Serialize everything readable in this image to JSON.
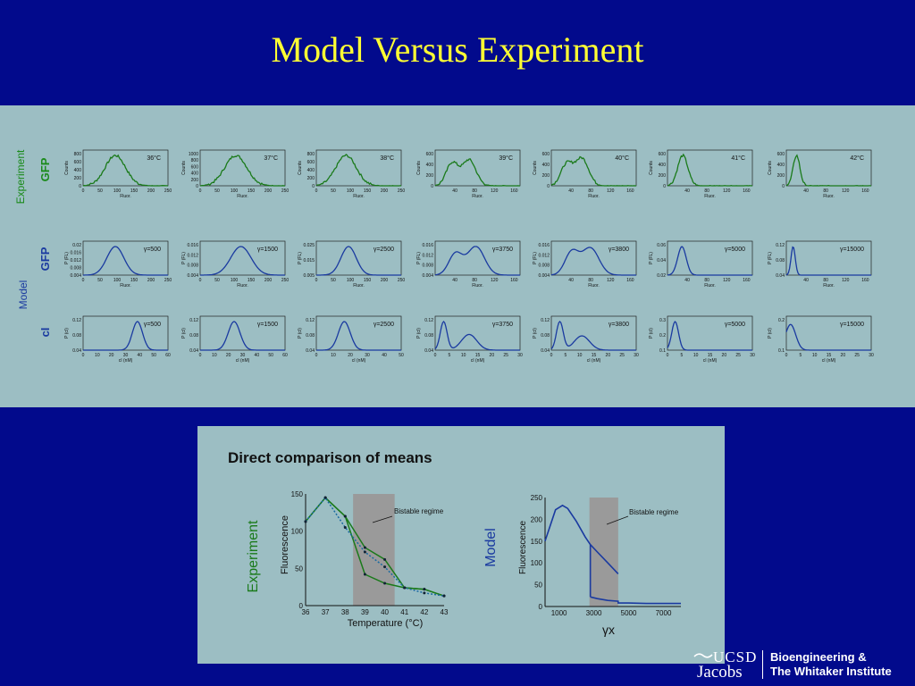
{
  "title": "Model Versus Experiment",
  "row_labels": {
    "experiment": "Experiment",
    "model": "Model",
    "gfp_exp": "GFP",
    "gfp_model": "GFP",
    "ci": "cI"
  },
  "experiment_plots": [
    {
      "label": "36°C",
      "ylabel": "Counts",
      "xlabel": "Fluor.",
      "yticks": [
        "800",
        "600",
        "400",
        "200",
        "0"
      ],
      "xticks": [
        "0",
        "50",
        "100",
        "150",
        "200",
        "250"
      ]
    },
    {
      "label": "37°C",
      "ylabel": "Counts",
      "xlabel": "Fluor.",
      "yticks": [
        "1000",
        "800",
        "600",
        "400",
        "200",
        "0"
      ],
      "xticks": [
        "0",
        "50",
        "100",
        "150",
        "200",
        "250"
      ]
    },
    {
      "label": "38°C",
      "ylabel": "Counts",
      "xlabel": "Fluor.",
      "yticks": [
        "800",
        "600",
        "400",
        "200",
        "0"
      ],
      "xticks": [
        "0",
        "50",
        "100",
        "150",
        "200",
        "250"
      ]
    },
    {
      "label": "39°C",
      "ylabel": "Counts",
      "xlabel": "Fluor.",
      "yticks": [
        "600",
        "400",
        "200",
        "0"
      ],
      "xticks": [
        "40",
        "80",
        "120",
        "160"
      ]
    },
    {
      "label": "40°C",
      "ylabel": "Counts",
      "xlabel": "Fluor.",
      "yticks": [
        "600",
        "400",
        "200",
        "0"
      ],
      "xticks": [
        "40",
        "80",
        "120",
        "160"
      ]
    },
    {
      "label": "41°C",
      "ylabel": "Counts",
      "xlabel": "Fluor.",
      "yticks": [
        "600",
        "400",
        "200",
        "0"
      ],
      "xticks": [
        "40",
        "80",
        "120",
        "160"
      ]
    },
    {
      "label": "42°C",
      "ylabel": "Counts",
      "xlabel": "Fluor.",
      "yticks": [
        "600",
        "400",
        "200",
        "0"
      ],
      "xticks": [
        "40",
        "80",
        "120",
        "160"
      ]
    }
  ],
  "gfp_model_plots": [
    {
      "label": "γ=500",
      "ylabel": "P (FL)",
      "xlabel": "Fluor.",
      "yticks": [
        "0.02",
        "0.016",
        "0.012",
        "0.008",
        "0.004"
      ],
      "xticks": [
        "0",
        "50",
        "100",
        "150",
        "200",
        "250"
      ]
    },
    {
      "label": "γ=1500",
      "ylabel": "P (FL)",
      "xlabel": "Fluor.",
      "yticks": [
        "0.016",
        "0.012",
        "0.008",
        "0.004"
      ],
      "xticks": [
        "0",
        "50",
        "100",
        "150",
        "200",
        "250"
      ]
    },
    {
      "label": "γ=2500",
      "ylabel": "P (FL)",
      "xlabel": "Fluor.",
      "yticks": [
        "0.025",
        "0.015",
        "0.005"
      ],
      "xticks": [
        "0",
        "50",
        "100",
        "150",
        "200",
        "250"
      ]
    },
    {
      "label": "γ=3750",
      "ylabel": "P (FL)",
      "xlabel": "Fluor.",
      "yticks": [
        "0.016",
        "0.012",
        "0.008",
        "0.004"
      ],
      "xticks": [
        "40",
        "80",
        "120",
        "160"
      ]
    },
    {
      "label": "γ=3800",
      "ylabel": "P (FL)",
      "xlabel": "Fluor.",
      "yticks": [
        "0.016",
        "0.012",
        "0.008",
        "0.004"
      ],
      "xticks": [
        "40",
        "80",
        "120",
        "160"
      ]
    },
    {
      "label": "γ=5000",
      "ylabel": "P (FL)",
      "xlabel": "Fluor.",
      "yticks": [
        "0.06",
        "0.04",
        "0.02"
      ],
      "xticks": [
        "40",
        "80",
        "120",
        "160"
      ]
    },
    {
      "label": "γ=15000",
      "ylabel": "P (FL)",
      "xlabel": "Fluor.",
      "yticks": [
        "0.12",
        "0.08",
        "0.04"
      ],
      "xticks": [
        "40",
        "80",
        "120",
        "160"
      ]
    }
  ],
  "ci_plots": [
    {
      "label": "γ=500",
      "ylabel": "P (cI)",
      "xlabel": "cI (nM)",
      "yticks": [
        "0.12",
        "0.08",
        "0.04"
      ],
      "xticks": [
        "0",
        "10",
        "20",
        "30",
        "40",
        "50",
        "60"
      ]
    },
    {
      "label": "γ=1500",
      "ylabel": "P (cI)",
      "xlabel": "cI (nM)",
      "yticks": [
        "0.12",
        "0.08",
        "0.04"
      ],
      "xticks": [
        "0",
        "10",
        "20",
        "30",
        "40",
        "50",
        "60"
      ]
    },
    {
      "label": "γ=2500",
      "ylabel": "P (cI)",
      "xlabel": "cI (nM)",
      "yticks": [
        "0.12",
        "0.08",
        "0.04"
      ],
      "xticks": [
        "0",
        "10",
        "20",
        "30",
        "40",
        "50"
      ]
    },
    {
      "label": "γ=3750",
      "ylabel": "P (cI)",
      "xlabel": "cI (nM)",
      "yticks": [
        "0.12",
        "0.08",
        "0.04"
      ],
      "xticks": [
        "0",
        "5",
        "10",
        "15",
        "20",
        "25",
        "30"
      ]
    },
    {
      "label": "γ=3800",
      "ylabel": "P (cI)",
      "xlabel": "cI (nM)",
      "yticks": [
        "0.12",
        "0.08",
        "0.04"
      ],
      "xticks": [
        "0",
        "5",
        "10",
        "15",
        "20",
        "25",
        "30"
      ]
    },
    {
      "label": "γ=5000",
      "ylabel": "P (cI)",
      "xlabel": "cI (nM)",
      "yticks": [
        "0.3",
        "0.2",
        "0.1"
      ],
      "xticks": [
        "0",
        "5",
        "10",
        "15",
        "20",
        "25",
        "30"
      ]
    },
    {
      "label": "γ=15000",
      "ylabel": "P (cI)",
      "xlabel": "cI (nM)",
      "yticks": [
        "0.2",
        "0.1"
      ],
      "xticks": [
        "0",
        "5",
        "10",
        "15",
        "20",
        "25",
        "30"
      ]
    }
  ],
  "comparison": {
    "heading": "Direct comparison of means",
    "experiment_label": "Experiment",
    "model_label": "Model",
    "bistable_label": "Bistable regime",
    "exp_ylabel": "Fluorescence",
    "exp_xlabel": "Temperature (°C)",
    "model_ylabel": "Fluorescence",
    "model_xlabel": "γx"
  },
  "colors": {
    "background": "#020a8c",
    "title": "#ffff33",
    "panel": "#9cbec3",
    "experiment_green": "#1a7a1a",
    "model_blue": "#1a3aa0",
    "bistable_gray": "#9a9a9a"
  },
  "chart_data": [
    {
      "type": "line",
      "title": "",
      "xlabel": "Temperature (°C)",
      "ylabel": "Fluorescence",
      "x": [
        36,
        37,
        38,
        39,
        40,
        41,
        42,
        43
      ],
      "xlim": [
        36,
        43
      ],
      "ylim": [
        0,
        150
      ],
      "yticks": [
        0,
        50,
        100,
        150
      ],
      "shaded_region": [
        38.4,
        40.5
      ],
      "series": [
        {
          "values": [
            113,
            145,
            120,
            78,
            62,
            24,
            22,
            13
          ]
        },
        {
          "values": [
            113,
            145,
            120,
            42,
            30,
            24,
            22,
            13
          ]
        },
        {
          "values": [
            113,
            145,
            105,
            72,
            52,
            24,
            17,
            13
          ]
        }
      ]
    },
    {
      "type": "line",
      "title": "",
      "xlabel": "γx",
      "ylabel": "Fluorescence",
      "xticks": [
        1000,
        3000,
        5000,
        7000
      ],
      "xlim": [
        200,
        8000
      ],
      "ylim": [
        0,
        250
      ],
      "yticks": [
        0,
        50,
        100,
        150,
        200,
        250
      ],
      "shaded_region": [
        2750,
        4400
      ],
      "series": [
        {
          "x": [
            200,
            800,
            1200,
            1500,
            2000,
            2500,
            2800,
            3200,
            3800,
            4400
          ],
          "values": [
            150,
            222,
            232,
            225,
            195,
            160,
            142,
            125,
            100,
            75
          ]
        },
        {
          "x": [
            2800,
            3200,
            3800,
            4400,
            4400,
            5000,
            6000,
            7000,
            8000
          ],
          "values": [
            22,
            18,
            14,
            12,
            8,
            8,
            7,
            7,
            7
          ]
        }
      ]
    }
  ]
}
